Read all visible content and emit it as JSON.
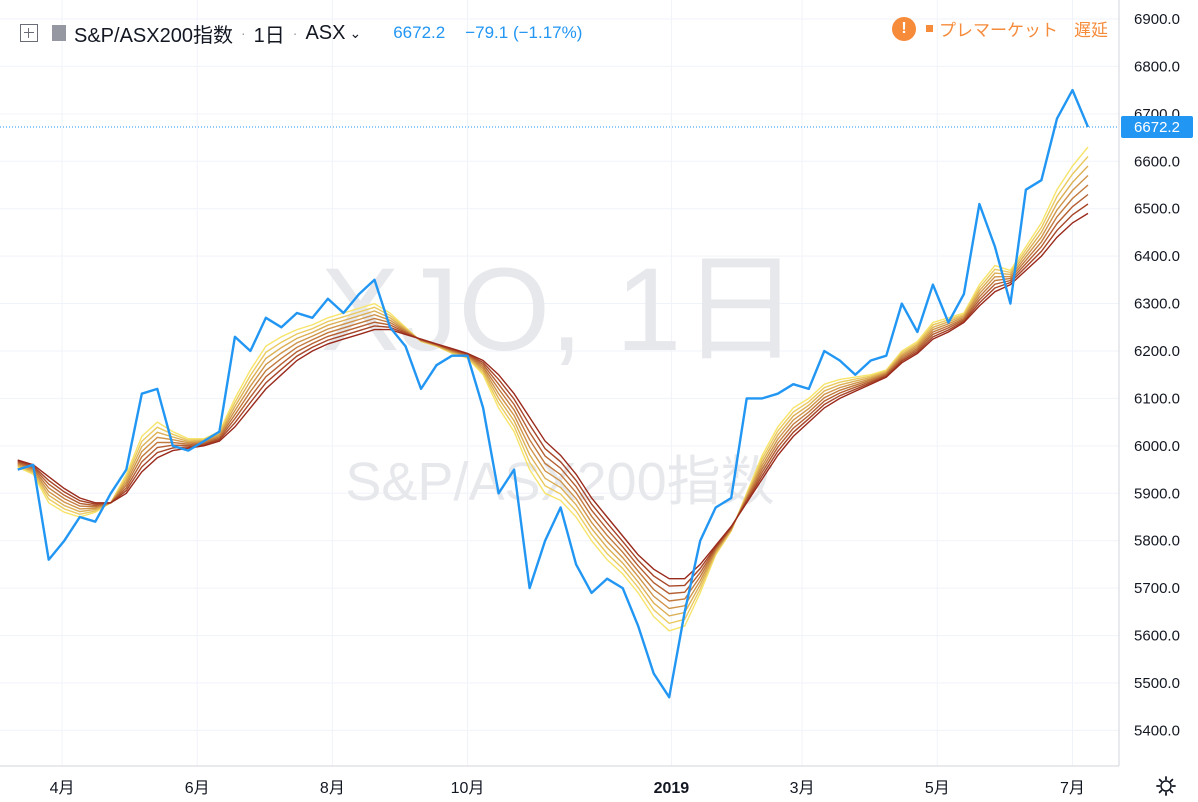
{
  "header": {
    "symbol": "S&P/ASX200指数",
    "interval": "1日",
    "exchange": "ASX",
    "last_price": "6672.2",
    "change": "−79.1 (−1.17%)"
  },
  "status": {
    "warning_icon": "!",
    "market_state": "プレマーケット",
    "delay_label": "遅延",
    "color": "#f68b3a"
  },
  "watermark": {
    "ticker": "XJO, 1日",
    "name": "S&P/ASX200指数"
  },
  "price_label": "6672.2",
  "colors": {
    "price_line": "#2196f3",
    "ribbon_fast": "#f7e46a",
    "ribbon_slow": "#9a2a1c",
    "grid": "#f0f3fa"
  },
  "chart_data": {
    "type": "line",
    "x_tick_labels": [
      "4月",
      "6月",
      "8月",
      "10月",
      "2019",
      "3月",
      "5月",
      "7月"
    ],
    "y_ticks": [
      5400.0,
      5500.0,
      5600.0,
      5700.0,
      5800.0,
      5900.0,
      6000.0,
      6100.0,
      6200.0,
      6300.0,
      6400.0,
      6500.0,
      6600.0,
      6700.0,
      6800.0,
      6900.0
    ],
    "ylim": [
      5325,
      6940
    ],
    "x": [
      "2018-03-12",
      "2018-03-19",
      "2018-03-26",
      "2018-04-02",
      "2018-04-09",
      "2018-04-16",
      "2018-04-23",
      "2018-04-30",
      "2018-05-07",
      "2018-05-14",
      "2018-05-21",
      "2018-05-28",
      "2018-06-04",
      "2018-06-11",
      "2018-06-18",
      "2018-06-25",
      "2018-07-02",
      "2018-07-09",
      "2018-07-16",
      "2018-07-23",
      "2018-07-30",
      "2018-08-06",
      "2018-08-13",
      "2018-08-20",
      "2018-08-27",
      "2018-09-03",
      "2018-09-10",
      "2018-09-17",
      "2018-09-24",
      "2018-10-01",
      "2018-10-08",
      "2018-10-15",
      "2018-10-22",
      "2018-10-29",
      "2018-11-05",
      "2018-11-12",
      "2018-11-19",
      "2018-11-26",
      "2018-12-03",
      "2018-12-10",
      "2018-12-17",
      "2018-12-24",
      "2018-12-31",
      "2019-01-07",
      "2019-01-14",
      "2019-01-21",
      "2019-01-28",
      "2019-02-04",
      "2019-02-11",
      "2019-02-18",
      "2019-02-25",
      "2019-03-04",
      "2019-03-11",
      "2019-03-18",
      "2019-03-25",
      "2019-04-01",
      "2019-04-08",
      "2019-04-15",
      "2019-04-22",
      "2019-04-29",
      "2019-05-06",
      "2019-05-13",
      "2019-05-20",
      "2019-05-27",
      "2019-06-03",
      "2019-06-10",
      "2019-06-17",
      "2019-06-24",
      "2019-07-01",
      "2019-07-08"
    ],
    "series": [
      {
        "role": "price",
        "values": [
          5950,
          5960,
          5760,
          5800,
          5850,
          5840,
          5900,
          5950,
          6110,
          6120,
          6000,
          5990,
          6010,
          6030,
          6230,
          6200,
          6270,
          6250,
          6280,
          6270,
          6310,
          6280,
          6320,
          6350,
          6250,
          6210,
          6120,
          6170,
          6190,
          6190,
          6080,
          5900,
          5950,
          5700,
          5800,
          5870,
          5750,
          5690,
          5720,
          5700,
          5620,
          5520,
          5470,
          5650,
          5800,
          5870,
          5890,
          6100,
          6100,
          6110,
          6130,
          6120,
          6200,
          6180,
          6150,
          6180,
          6190,
          6300,
          6240,
          6340,
          6260,
          6320,
          6510,
          6420,
          6300,
          6540,
          6560,
          6690,
          6750,
          6672.2
        ]
      },
      {
        "role": "ema-fast",
        "values": [
          5955,
          5940,
          5880,
          5860,
          5850,
          5860,
          5880,
          5940,
          6020,
          6050,
          6030,
          6015,
          6015,
          6030,
          6100,
          6160,
          6210,
          6230,
          6245,
          6255,
          6270,
          6280,
          6290,
          6300,
          6280,
          6250,
          6220,
          6210,
          6195,
          6185,
          6150,
          6080,
          6030,
          5950,
          5900,
          5885,
          5850,
          5800,
          5760,
          5730,
          5690,
          5640,
          5610,
          5620,
          5690,
          5770,
          5820,
          5900,
          5980,
          6040,
          6080,
          6100,
          6130,
          6140,
          6145,
          6150,
          6160,
          6200,
          6220,
          6260,
          6270,
          6280,
          6340,
          6380,
          6370,
          6420,
          6470,
          6540,
          6590,
          6630
        ]
      },
      {
        "role": "ema-slow",
        "values": [
          5970,
          5960,
          5935,
          5910,
          5890,
          5880,
          5880,
          5900,
          5945,
          5975,
          5990,
          5995,
          6000,
          6010,
          6040,
          6080,
          6120,
          6150,
          6180,
          6200,
          6215,
          6225,
          6235,
          6245,
          6245,
          6235,
          6225,
          6215,
          6205,
          6195,
          6180,
          6150,
          6110,
          6060,
          6010,
          5980,
          5940,
          5890,
          5850,
          5810,
          5770,
          5740,
          5720,
          5720,
          5750,
          5790,
          5830,
          5880,
          5930,
          5980,
          6020,
          6050,
          6080,
          6100,
          6115,
          6130,
          6145,
          6175,
          6195,
          6225,
          6240,
          6260,
          6295,
          6325,
          6340,
          6370,
          6400,
          6440,
          6470,
          6490
        ]
      }
    ]
  }
}
